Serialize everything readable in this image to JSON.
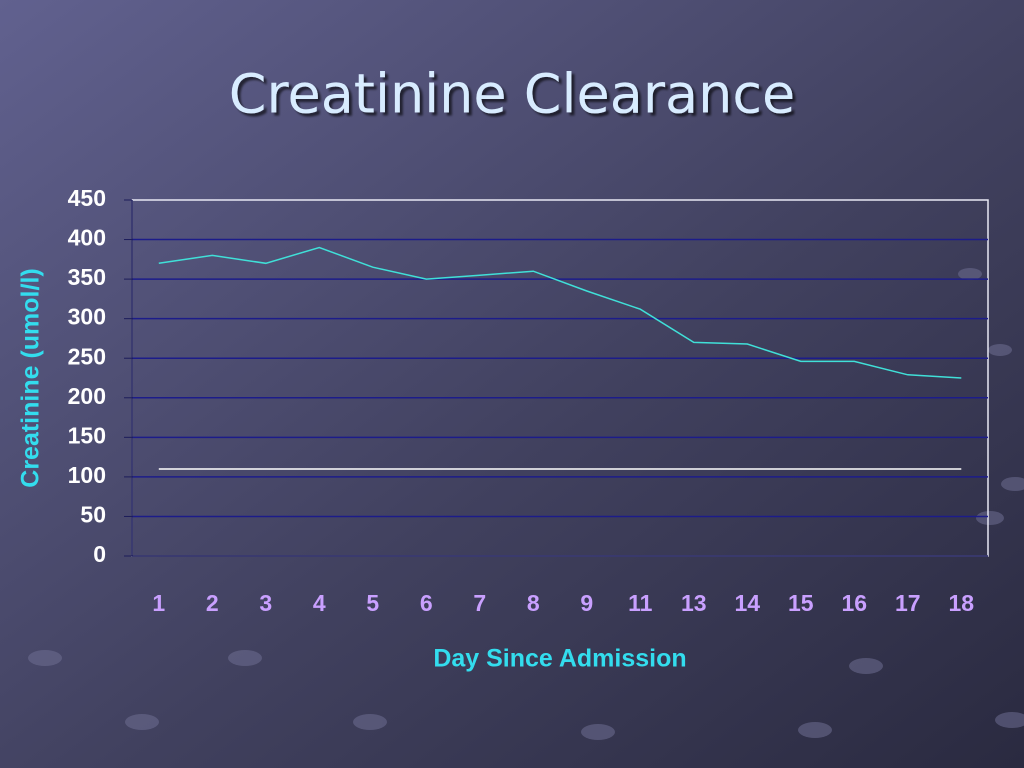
{
  "chart_data": {
    "type": "line",
    "title": "Creatinine Clearance",
    "x_label": "Day Since Admission",
    "y_label": "Creatinine (umol/l)",
    "categories": [
      "1",
      "2",
      "3",
      "4",
      "5",
      "6",
      "7",
      "8",
      "9",
      "11",
      "13",
      "14",
      "15",
      "16",
      "17",
      "18"
    ],
    "series": [
      {
        "color": "#40e0d8",
        "values": [
          370,
          380,
          370,
          390,
          365,
          350,
          355,
          360,
          335,
          312,
          270,
          268,
          246,
          246,
          229,
          225
        ]
      },
      {
        "color": "#ffffff",
        "values": [
          110,
          110,
          110,
          110,
          110,
          110,
          110,
          110,
          110,
          110,
          110,
          110,
          110,
          110,
          110,
          110
        ]
      }
    ],
    "ylim": [
      0,
      450
    ],
    "yticks": [
      0,
      50,
      100,
      150,
      200,
      250,
      300,
      350,
      400,
      450
    ],
    "grid": true
  }
}
